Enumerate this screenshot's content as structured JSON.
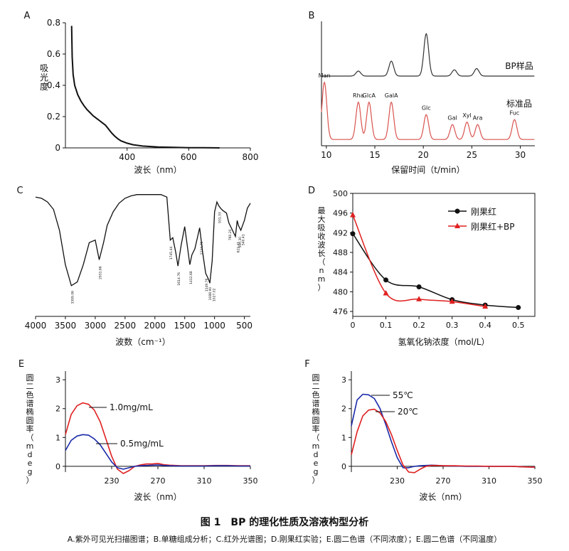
{
  "figure": {
    "caption": "图 1　BP 的理化性质及溶液构型分析",
    "subcaption": "A.紫外可见光扫描图谱；B.单糖组成分析；C.红外光谱图；D.刚果红实验；E.圆二色谱（不同浓度）；E.圆二色谱（不同温度）"
  },
  "chart_data": [
    {
      "panel": "A",
      "type": "line",
      "xlabel": "波长（nm）",
      "ylabel": "吸光度",
      "xlim": [
        200,
        800
      ],
      "ylim": [
        0,
        0.8
      ],
      "xticks": [
        400,
        600,
        800
      ],
      "yticks": [
        0,
        0.2,
        0.4,
        0.6,
        0.8
      ],
      "series": [
        {
          "color": "#111111",
          "x": [
            220,
            222,
            225,
            230,
            240,
            250,
            260,
            270,
            280,
            290,
            300,
            310,
            320,
            330,
            340,
            350,
            360,
            370,
            380,
            400,
            420,
            450,
            500,
            550,
            600,
            650,
            700
          ],
          "y": [
            0.78,
            0.58,
            0.47,
            0.4,
            0.34,
            0.3,
            0.27,
            0.245,
            0.225,
            0.205,
            0.19,
            0.175,
            0.16,
            0.145,
            0.12,
            0.095,
            0.075,
            0.058,
            0.045,
            0.03,
            0.02,
            0.012,
            0.006,
            0.003,
            0.0015,
            0.001,
            0.0
          ]
        }
      ]
    },
    {
      "panel": "B",
      "type": "line",
      "xlabel": "保留时间（t/min）",
      "xlim": [
        9.5,
        31.5
      ],
      "xticks": [
        10,
        15,
        20,
        25,
        30
      ],
      "series": [
        {
          "name": "BP样品",
          "color": "#333333",
          "baseline": 0.56,
          "peaks": [
            [
              13.3,
              0.04
            ],
            [
              16.7,
              0.12
            ],
            [
              20.3,
              0.34
            ],
            [
              23.2,
              0.05
            ],
            [
              25.5,
              0.06
            ]
          ]
        },
        {
          "name": "标准品",
          "color": "#d9534f",
          "baseline": 0.05,
          "peaks": [
            [
              9.8,
              0.46
            ],
            [
              13.3,
              0.3
            ],
            [
              14.4,
              0.3
            ],
            [
              16.7,
              0.3
            ],
            [
              20.3,
              0.2
            ],
            [
              23.0,
              0.12
            ],
            [
              24.5,
              0.14
            ],
            [
              25.6,
              0.12
            ],
            [
              29.4,
              0.16
            ]
          ]
        }
      ],
      "annotations": [
        "Man",
        "Rha",
        "GlcA",
        "GalA",
        "Glc",
        "Gal",
        "Xyl",
        "Ara",
        "Fuc"
      ]
    },
    {
      "panel": "C",
      "type": "line",
      "xlabel": "波数（cm⁻¹）",
      "xlim": [
        4000,
        400
      ],
      "xticks": [
        4000,
        3500,
        3000,
        2500,
        2000,
        1500,
        1000,
        500
      ],
      "series": [
        {
          "color": "#111111",
          "x": [
            4000,
            3900,
            3800,
            3700,
            3600,
            3500,
            3400,
            3300,
            3200,
            3100,
            3000,
            2933,
            2860,
            2800,
            2700,
            2600,
            2500,
            2400,
            2300,
            2200,
            2100,
            1900,
            1800,
            1742,
            1700,
            1650,
            1614,
            1560,
            1500,
            1450,
            1414,
            1380,
            1330,
            1250,
            1234,
            1200,
            1149,
            1100,
            1080,
            1040,
            1000,
            960,
            931,
            900,
            860,
            800,
            760,
            700,
            650,
            620,
            600,
            560,
            500,
            450,
            400
          ],
          "y": [
            0.97,
            0.96,
            0.93,
            0.87,
            0.7,
            0.42,
            0.25,
            0.28,
            0.42,
            0.6,
            0.62,
            0.46,
            0.6,
            0.74,
            0.85,
            0.92,
            0.96,
            0.98,
            0.99,
            0.99,
            0.99,
            0.99,
            0.97,
            0.62,
            0.64,
            0.52,
            0.41,
            0.58,
            0.73,
            0.55,
            0.42,
            0.5,
            0.55,
            0.72,
            0.66,
            0.52,
            0.35,
            0.3,
            0.27,
            0.45,
            0.85,
            0.93,
            0.9,
            0.88,
            0.86,
            0.84,
            0.76,
            0.7,
            0.65,
            0.78,
            0.74,
            0.7,
            0.78,
            0.88,
            0.92
          ]
        }
      ],
      "annotations": [
        "3399.06",
        "2931.66",
        "1745.44",
        "1614.76",
        "1412.68",
        "1234.71",
        "1149.76",
        "1088.90",
        "1027.02",
        "931.33",
        "760.20",
        "622.41",
        "590.30",
        "540.41"
      ]
    },
    {
      "panel": "D",
      "type": "line",
      "xlabel": "氢氧化钠浓度（mol/L）",
      "ylabel": "最大吸收波长（nm）",
      "xlim": [
        0,
        0.55
      ],
      "ylim": [
        475,
        500
      ],
      "xticks": [
        0,
        0.1,
        0.2,
        0.3,
        0.4,
        0.5
      ],
      "yticks": [
        476,
        480,
        484,
        488,
        492,
        496,
        500
      ],
      "legend": "top-right",
      "series": [
        {
          "name": "刚果红",
          "color": "#111111",
          "marker": "circle",
          "x": [
            0,
            0.1,
            0.2,
            0.3,
            0.4,
            0.5
          ],
          "y": [
            491.8,
            482.4,
            481.0,
            478.4,
            477.3,
            476.8
          ]
        },
        {
          "name": "刚果红+BP",
          "color": "#e02020",
          "marker": "triangle",
          "x": [
            0,
            0.1,
            0.2,
            0.3,
            0.4
          ],
          "y": [
            495.6,
            479.7,
            478.5,
            478.0,
            477.0
          ]
        }
      ]
    },
    {
      "panel": "E",
      "type": "line",
      "xlabel": "波长（nm）",
      "ylabel": "圆二色谱椭圆率（mdeg）",
      "xlim": [
        190,
        350
      ],
      "ylim": [
        -0.2,
        3.3
      ],
      "xticks": [
        230,
        270,
        310,
        350
      ],
      "yticks": [
        0,
        1,
        2,
        3
      ],
      "series": [
        {
          "name": "1.0mg/mL",
          "color": "#e02020",
          "x": [
            190,
            195,
            200,
            205,
            210,
            215,
            220,
            225,
            230,
            235,
            240,
            245,
            250,
            255,
            260,
            265,
            270,
            275,
            280,
            290,
            300,
            310,
            320,
            330,
            340,
            350
          ],
          "y": [
            1.1,
            1.8,
            2.1,
            2.2,
            2.15,
            1.95,
            1.55,
            0.95,
            0.35,
            -0.1,
            -0.25,
            -0.15,
            0.0,
            0.05,
            0.08,
            0.08,
            0.1,
            0.06,
            0.04,
            0.02,
            0.02,
            0.02,
            0.03,
            0.03,
            0.02,
            0.02
          ]
        },
        {
          "name": "0.5mg/mL",
          "color": "#1a2aa8",
          "x": [
            190,
            195,
            200,
            205,
            210,
            215,
            220,
            225,
            230,
            235,
            240,
            245,
            250,
            255,
            260,
            265,
            270,
            275,
            280,
            290,
            300,
            310,
            320,
            330,
            340,
            350
          ],
          "y": [
            0.55,
            0.9,
            1.05,
            1.1,
            1.08,
            0.95,
            0.75,
            0.45,
            0.15,
            -0.05,
            -0.1,
            -0.05,
            0.0,
            0.02,
            0.03,
            0.04,
            0.05,
            0.03,
            0.02,
            0.01,
            0.01,
            0.01,
            0.02,
            0.02,
            0.01,
            0.01
          ]
        }
      ]
    },
    {
      "panel": "F",
      "type": "line",
      "xlabel": "波长（nm）",
      "ylabel": "圆二色谱椭圆率（mdeg）",
      "xlim": [
        190,
        350
      ],
      "ylim": [
        -0.2,
        3.3
      ],
      "xticks": [
        230,
        270,
        310,
        350
      ],
      "yticks": [
        0,
        1,
        2,
        3
      ],
      "series": [
        {
          "name": "55℃",
          "color": "#1a2aa8",
          "x": [
            190,
            195,
            200,
            205,
            210,
            215,
            220,
            225,
            230,
            235,
            240,
            245,
            250,
            255,
            260,
            265,
            270,
            280,
            290,
            300,
            310,
            320,
            330,
            340,
            350
          ],
          "y": [
            1.4,
            2.3,
            2.5,
            2.48,
            2.35,
            2.0,
            1.45,
            0.85,
            0.3,
            -0.05,
            -0.05,
            0.0,
            0.02,
            0.03,
            0.04,
            0.03,
            0.02,
            0.01,
            0.0,
            0.0,
            0.0,
            0.0,
            0.0,
            -0.02,
            -0.03
          ]
        },
        {
          "name": "20℃",
          "color": "#e02020",
          "x": [
            190,
            195,
            200,
            205,
            210,
            215,
            220,
            225,
            230,
            235,
            240,
            245,
            250,
            255,
            260,
            265,
            270,
            280,
            290,
            300,
            310,
            320,
            330,
            340,
            350
          ],
          "y": [
            0.4,
            1.2,
            1.75,
            1.95,
            1.98,
            1.85,
            1.55,
            1.1,
            0.55,
            0.05,
            -0.2,
            -0.22,
            -0.1,
            0.0,
            0.03,
            0.03,
            0.02,
            0.02,
            0.01,
            0.01,
            0.0,
            0.0,
            0.0,
            -0.02,
            -0.03
          ]
        }
      ]
    }
  ]
}
